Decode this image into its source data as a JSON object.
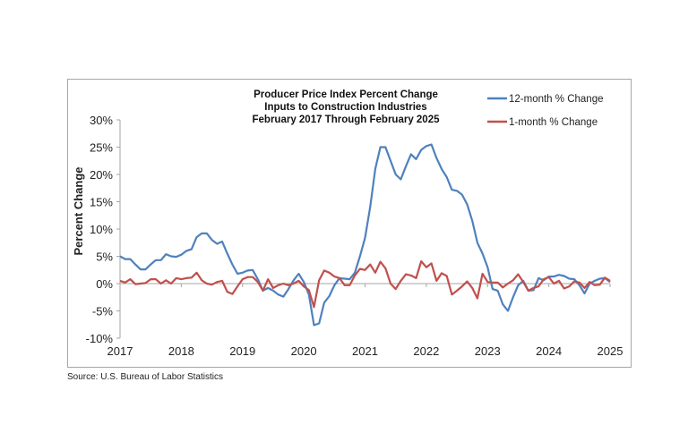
{
  "chart_data": {
    "type": "line",
    "title_lines": [
      "Producer Price Index Percent Change",
      "Inputs to Construction Industries",
      "February 2017 Through February 2025"
    ],
    "ylabel": "Percent Change",
    "xlabel": "",
    "x_start": "2017-02",
    "x_end": "2025-02",
    "x_ticks": [
      "2017",
      "2018",
      "2019",
      "2020",
      "2021",
      "2022",
      "2023",
      "2024",
      "2025"
    ],
    "y_ticks": [
      "30%",
      "25%",
      "20%",
      "15%",
      "10%",
      "5%",
      "0%",
      "-5%",
      "-10%"
    ],
    "ylim": [
      -10,
      30
    ],
    "grid": false,
    "legend_position": "top-right",
    "series": [
      {
        "name": "12-month % Change",
        "color": "#4f81bd",
        "values": [
          5.0,
          4.5,
          4.5,
          3.5,
          2.6,
          2.6,
          3.5,
          4.3,
          4.3,
          5.4,
          5.0,
          4.9,
          5.3,
          6.0,
          6.3,
          8.5,
          9.2,
          9.2,
          8.0,
          7.3,
          7.7,
          5.5,
          3.5,
          1.8,
          2.0,
          2.4,
          2.5,
          0.8,
          -1.3,
          -0.8,
          -1.3,
          -2.0,
          -2.4,
          -1.0,
          0.6,
          1.8,
          0.3,
          -2.0,
          -7.6,
          -7.3,
          -3.5,
          -2.3,
          -0.3,
          1.0,
          0.9,
          0.8,
          2.0,
          5.0,
          8.4,
          14.0,
          21.0,
          25.0,
          25.0,
          22.5,
          20.0,
          19.1,
          21.5,
          23.7,
          22.8,
          24.5,
          25.2,
          25.5,
          23.0,
          21.0,
          19.5,
          17.2,
          17.0,
          16.3,
          14.5,
          11.5,
          7.5,
          5.5,
          3.0,
          -1.0,
          -1.3,
          -3.8,
          -5.0,
          -2.5,
          -0.3,
          0.5,
          -1.3,
          -1.2,
          1.0,
          0.6,
          1.3,
          1.3,
          1.6,
          1.4,
          0.9,
          0.8,
          -0.3,
          -1.8,
          0.0,
          0.5,
          0.9,
          1.0,
          0.3
        ]
      },
      {
        "name": "1-month % Change",
        "color": "#c0504d",
        "values": [
          0.5,
          0.2,
          0.8,
          -0.1,
          0.0,
          0.1,
          0.8,
          0.8,
          0.0,
          0.6,
          0.0,
          1.0,
          0.8,
          1.0,
          1.1,
          2.0,
          0.6,
          0.0,
          -0.2,
          0.3,
          0.5,
          -1.5,
          -1.9,
          -0.5,
          0.8,
          1.2,
          1.2,
          0.3,
          -1.3,
          0.8,
          -0.8,
          -0.3,
          0.0,
          -0.3,
          0.0,
          0.5,
          -0.5,
          -1.2,
          -4.3,
          0.6,
          2.4,
          2.0,
          1.3,
          1.0,
          -0.3,
          -0.3,
          1.5,
          2.7,
          2.5,
          3.5,
          2.0,
          4.0,
          2.8,
          0.0,
          -1.0,
          0.5,
          1.7,
          1.5,
          1.0,
          4.1,
          3.0,
          3.7,
          0.5,
          1.9,
          1.4,
          -2.0,
          -1.3,
          -0.5,
          0.4,
          -0.8,
          -2.7,
          1.8,
          0.3,
          0.2,
          0.2,
          -0.7,
          0.0,
          0.6,
          1.7,
          0.3,
          -1.3,
          -0.8,
          -0.5,
          0.8,
          1.2,
          0.0,
          0.5,
          -0.9,
          -0.5,
          0.4,
          0.2,
          -0.8,
          0.3,
          -0.3,
          -0.2,
          1.1,
          0.5
        ]
      }
    ]
  },
  "source": "Source: U.S. Bureau of Labor Statistics"
}
